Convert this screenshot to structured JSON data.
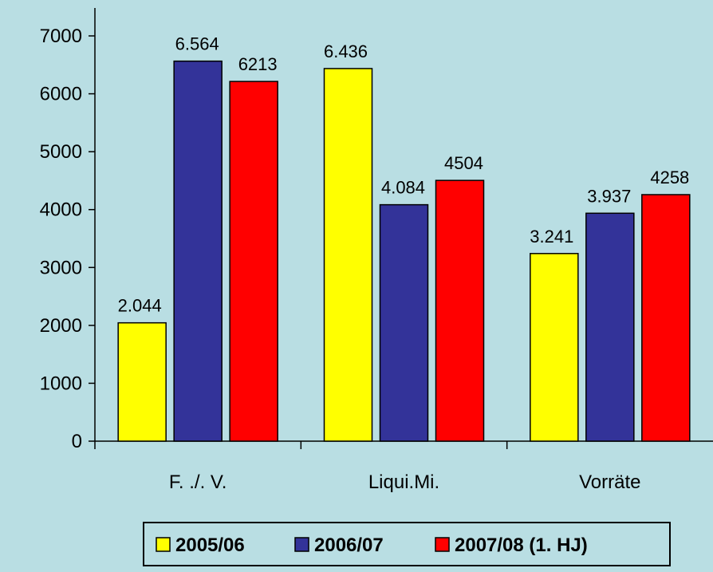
{
  "chart_data": {
    "type": "bar",
    "categories": [
      "F. ./. V.",
      "Liqui.Mi.",
      "Vorräte"
    ],
    "series": [
      {
        "name": "2005/06",
        "color": "#ffff00",
        "values": [
          2044,
          6436,
          3241
        ],
        "labels": [
          "2.044",
          "6.436",
          "3.241"
        ]
      },
      {
        "name": "2006/07",
        "color": "#333399",
        "values": [
          6564,
          4084,
          3937
        ],
        "labels": [
          "6.564",
          "4.084",
          "3.937"
        ]
      },
      {
        "name": "2007/08 (1. HJ)",
        "color": "#ff0000",
        "values": [
          6213,
          4504,
          4258
        ],
        "labels": [
          "6213",
          "4504",
          "4258"
        ]
      }
    ],
    "ylim": [
      0,
      7000
    ],
    "yticks": [
      0,
      1000,
      2000,
      3000,
      4000,
      5000,
      6000,
      7000
    ],
    "grid": false,
    "legend_position": "bottom",
    "background": "#b9dee3"
  }
}
